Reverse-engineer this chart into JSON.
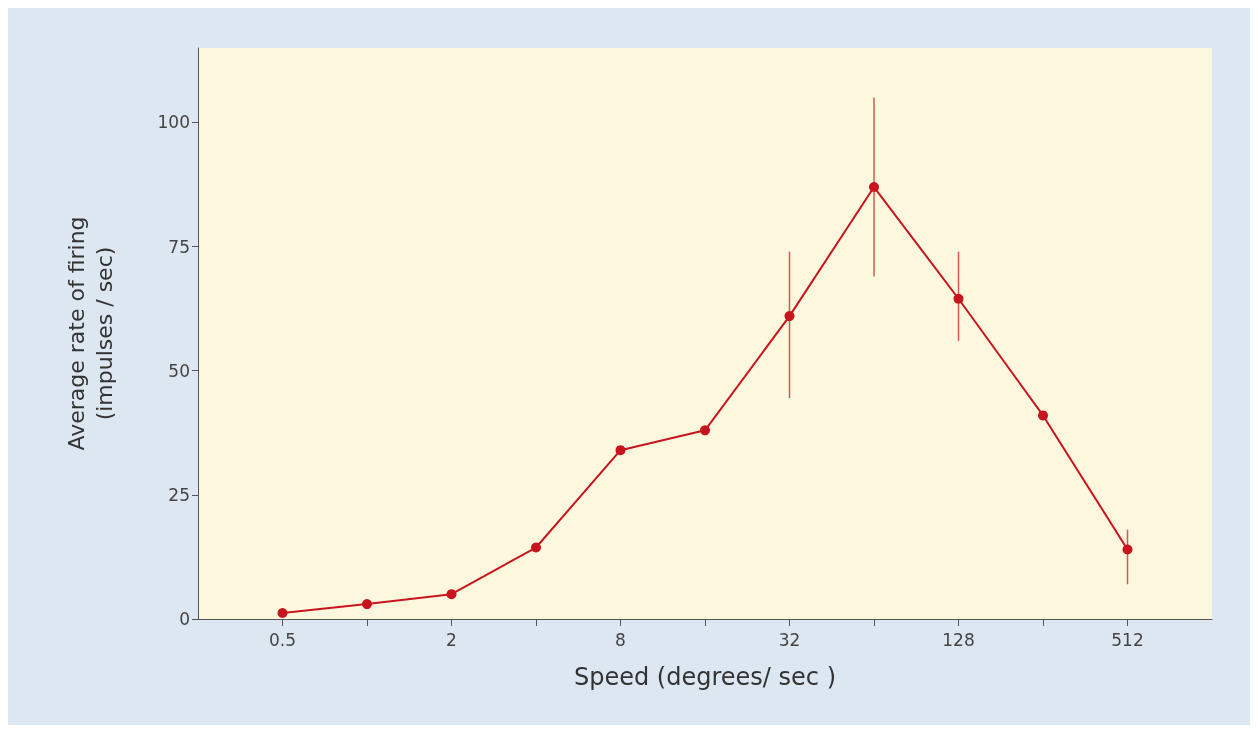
{
  "chart_data": {
    "type": "line",
    "xlabel": "Speed (degrees/ sec )",
    "ylabel": "Average rate of firing\n(impulses / sec)",
    "x": [
      0.5,
      1,
      2,
      4,
      8,
      16,
      32,
      64,
      128,
      256,
      512
    ],
    "series": [
      {
        "color": "#c8141e",
        "values": [
          1.2,
          3,
          5,
          14.4,
          34,
          38,
          61,
          87,
          64.5,
          41,
          14
        ],
        "errors": [
          null,
          null,
          null,
          null,
          null,
          null,
          [
            44.5,
            74
          ],
          [
            69,
            105
          ],
          [
            56,
            74
          ],
          null,
          [
            7,
            18
          ]
        ]
      }
    ],
    "log": "x",
    "xlim": [
      0.25,
      1024
    ],
    "xticks": [
      0.5,
      {
        "value": 1,
        "label": null
      },
      2,
      {
        "value": 4,
        "label": null
      },
      8,
      {
        "value": 16,
        "label": null
      },
      32,
      {
        "value": 64,
        "label": null
      },
      128,
      {
        "value": 256,
        "label": null
      },
      512
    ],
    "ylim": [
      0,
      115
    ],
    "yticks": [
      0,
      25,
      50,
      75,
      100
    ],
    "grid": false,
    "marker": "circle",
    "line_style": "solid"
  }
}
